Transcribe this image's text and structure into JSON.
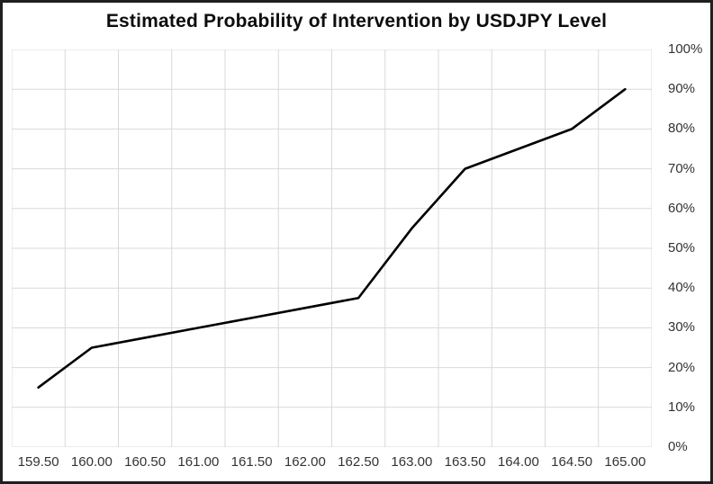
{
  "title": "Estimated Probability of Intervention by USDJPY Level",
  "chart_data": {
    "type": "line",
    "title": "Estimated Probability of Intervention by USDJPY Level",
    "categories": [
      "159.50",
      "160.00",
      "160.50",
      "161.00",
      "161.50",
      "162.00",
      "162.50",
      "163.00",
      "163.50",
      "164.00",
      "164.50",
      "165.00"
    ],
    "values": [
      15,
      25,
      27.5,
      30,
      32.5,
      35,
      37.5,
      55,
      70,
      75,
      80,
      90
    ],
    "xlabel": "",
    "ylabel": "",
    "ylim": [
      0,
      100
    ],
    "y_ticks": [
      "0%",
      "10%",
      "20%",
      "30%",
      "40%",
      "50%",
      "60%",
      "70%",
      "80%",
      "90%",
      "100%"
    ],
    "y_tick_values": [
      0,
      10,
      20,
      30,
      40,
      50,
      60,
      70,
      80,
      90,
      100
    ],
    "y_axis_side": "right",
    "grid": true,
    "legend": "none",
    "line_color": "#000000",
    "grid_color": "#d9d9d9",
    "axis_label_color": "#333333",
    "background_color": "#ffffff",
    "border_color": "#1f1f1f"
  }
}
